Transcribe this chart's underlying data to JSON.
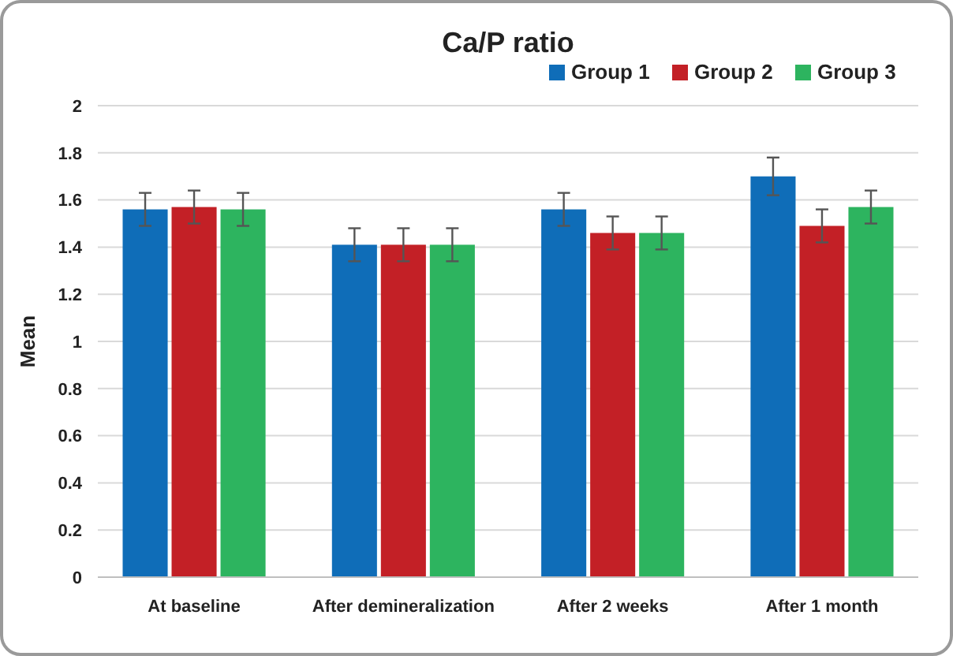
{
  "chart_data": {
    "type": "bar",
    "title": "Ca/P ratio",
    "ylabel": "Mean",
    "categories": [
      "At baseline",
      "After demineralization",
      "After 2 weeks",
      "After 1 month"
    ],
    "series": [
      {
        "name": "Group 1",
        "color": "#0f6db8",
        "values": [
          1.56,
          1.41,
          1.56,
          1.7
        ],
        "errors": [
          0.07,
          0.07,
          0.07,
          0.08
        ]
      },
      {
        "name": "Group 2",
        "color": "#c32026",
        "values": [
          1.57,
          1.41,
          1.46,
          1.49
        ],
        "errors": [
          0.07,
          0.07,
          0.07,
          0.07
        ]
      },
      {
        "name": "Group 3",
        "color": "#2db45f",
        "values": [
          1.56,
          1.41,
          1.46,
          1.57
        ],
        "errors": [
          0.07,
          0.07,
          0.07,
          0.07
        ]
      }
    ],
    "ylim": [
      0,
      2
    ],
    "yticks": [
      0,
      0.2,
      0.4,
      0.6,
      0.8,
      1,
      1.2,
      1.4,
      1.6,
      1.8,
      2
    ],
    "grid": "y",
    "legend": "top right"
  }
}
